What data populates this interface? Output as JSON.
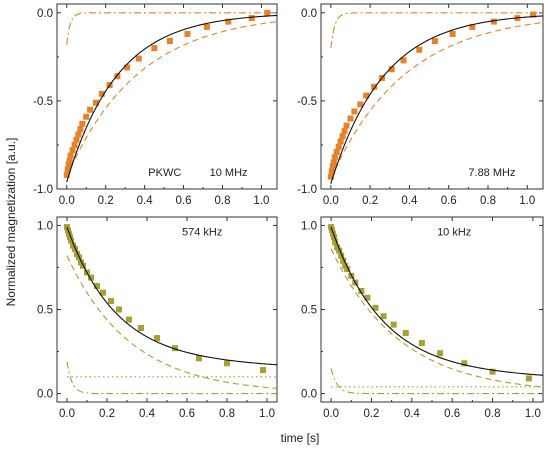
{
  "figure": {
    "ylabel": "Normalized magnetization [a.u.]",
    "xlabel": "time [s]"
  },
  "chart_data": [
    {
      "type": "scatter",
      "panel": "top-left",
      "annotations": [
        "PKWC",
        "10 MHz"
      ],
      "xlim": [
        -0.05,
        1.08
      ],
      "ylim": [
        -1.0,
        0.05
      ],
      "xticks": [
        0.0,
        0.2,
        0.4,
        0.6,
        0.8,
        1.0
      ],
      "xtick_labels": [
        "0.0",
        "0.2",
        "0.4",
        "0.6",
        "0.8",
        "1.0"
      ],
      "yticks": [
        -1.0,
        -0.5,
        0.0
      ],
      "ytick_labels": [
        "-1.0",
        "-0.5",
        "0.0"
      ],
      "marker_color": "#e8822a",
      "points": {
        "x": [
          0.0,
          0.005,
          0.01,
          0.015,
          0.02,
          0.03,
          0.04,
          0.05,
          0.06,
          0.07,
          0.08,
          0.1,
          0.12,
          0.15,
          0.18,
          0.22,
          0.26,
          0.31,
          0.37,
          0.45,
          0.53,
          0.62,
          0.72,
          0.83,
          0.95,
          1.03
        ],
        "y": [
          -0.92,
          -0.89,
          -0.86,
          -0.84,
          -0.81,
          -0.78,
          -0.75,
          -0.72,
          -0.69,
          -0.66,
          -0.63,
          -0.59,
          -0.55,
          -0.51,
          -0.46,
          -0.41,
          -0.36,
          -0.31,
          -0.26,
          -0.2,
          -0.16,
          -0.12,
          -0.08,
          -0.05,
          -0.03,
          0.0
        ]
      },
      "fit": {
        "type": "exp",
        "a": -0.96,
        "tau": 0.26,
        "offset": 0.0
      },
      "dashed": {
        "type": "exp",
        "a": -0.93,
        "tau": 0.37,
        "offset": 0.0
      },
      "dashdot": {
        "type": "exp",
        "a": -0.18,
        "tau": 0.018,
        "offset": 0.0
      }
    },
    {
      "type": "scatter",
      "panel": "top-right",
      "annotations": [
        "7.88 MHz"
      ],
      "xlim": [
        -0.05,
        1.08
      ],
      "ylim": [
        -1.0,
        0.05
      ],
      "xticks": [
        0.0,
        0.2,
        0.4,
        0.6,
        0.8,
        1.0
      ],
      "xtick_labels": [
        "0.0",
        "0.2",
        "0.4",
        "0.6",
        "0.8",
        "1.0"
      ],
      "yticks": [
        -1.0,
        -0.5,
        0.0
      ],
      "ytick_labels": [
        "-1.0",
        "-0.5",
        "0.0"
      ],
      "marker_color": "#e8822a",
      "points": {
        "x": [
          0.0,
          0.005,
          0.01,
          0.015,
          0.02,
          0.03,
          0.04,
          0.05,
          0.06,
          0.07,
          0.08,
          0.1,
          0.12,
          0.15,
          0.18,
          0.22,
          0.26,
          0.31,
          0.37,
          0.45,
          0.53,
          0.62,
          0.72,
          0.83,
          0.95,
          1.03
        ],
        "y": [
          -0.93,
          -0.9,
          -0.87,
          -0.85,
          -0.82,
          -0.79,
          -0.76,
          -0.73,
          -0.7,
          -0.67,
          -0.64,
          -0.6,
          -0.56,
          -0.52,
          -0.47,
          -0.42,
          -0.37,
          -0.32,
          -0.27,
          -0.21,
          -0.16,
          -0.12,
          -0.08,
          -0.05,
          -0.03,
          -0.01
        ]
      },
      "fit": {
        "type": "exp",
        "a": -0.97,
        "tau": 0.27,
        "offset": 0.0
      },
      "dashed": {
        "type": "exp",
        "a": -0.94,
        "tau": 0.38,
        "offset": 0.0
      },
      "dashdot": {
        "type": "exp",
        "a": -0.2,
        "tau": 0.02,
        "offset": 0.0
      }
    },
    {
      "type": "scatter",
      "panel": "bottom-left",
      "annotations": [
        "574 kHz"
      ],
      "xlim": [
        -0.05,
        1.05
      ],
      "ylim": [
        -0.05,
        1.05
      ],
      "xticks": [
        0.0,
        0.2,
        0.4,
        0.6,
        0.8,
        1.0
      ],
      "xtick_labels": [
        "0.0",
        "0.2",
        "0.4",
        "0.6",
        "0.8",
        "1.0"
      ],
      "yticks": [
        0.0,
        0.5,
        1.0
      ],
      "ytick_labels": [
        "0.0",
        "0.5",
        "1.0"
      ],
      "marker_color": "#a8a032",
      "points": {
        "x": [
          0.0,
          0.005,
          0.01,
          0.015,
          0.02,
          0.03,
          0.04,
          0.05,
          0.06,
          0.07,
          0.08,
          0.1,
          0.12,
          0.15,
          0.18,
          0.22,
          0.26,
          0.31,
          0.37,
          0.45,
          0.54,
          0.66,
          0.8,
          0.98
        ],
        "y": [
          0.99,
          0.97,
          0.95,
          0.93,
          0.91,
          0.88,
          0.86,
          0.83,
          0.81,
          0.78,
          0.76,
          0.72,
          0.69,
          0.64,
          0.6,
          0.55,
          0.5,
          0.44,
          0.39,
          0.33,
          0.27,
          0.21,
          0.18,
          0.14
        ]
      },
      "fit": {
        "type": "exp2",
        "a1": 0.78,
        "tau1": 0.24,
        "a2": 0.21,
        "tau2": 4.0
      },
      "dashed": {
        "type": "exp",
        "a": 0.82,
        "tau": 0.32,
        "offset": 0.0
      },
      "dashdot": {
        "type": "exp",
        "a": 0.19,
        "tau": 0.025,
        "offset": 0.0
      },
      "dotted": {
        "type": "const",
        "value": 0.1
      }
    },
    {
      "type": "scatter",
      "panel": "bottom-right",
      "annotations": [
        "10 kHz"
      ],
      "xlim": [
        -0.05,
        1.05
      ],
      "ylim": [
        -0.05,
        1.05
      ],
      "xticks": [
        0.0,
        0.2,
        0.4,
        0.6,
        0.8,
        1.0
      ],
      "xtick_labels": [
        "0.0",
        "0.2",
        "0.4",
        "0.6",
        "0.8",
        "1.0"
      ],
      "yticks": [
        0.0,
        0.5,
        1.0
      ],
      "ytick_labels": [
        "0.0",
        "0.5",
        "1.0"
      ],
      "marker_color": "#a8a032",
      "points": {
        "x": [
          0.0,
          0.005,
          0.01,
          0.015,
          0.02,
          0.03,
          0.04,
          0.05,
          0.06,
          0.07,
          0.08,
          0.1,
          0.12,
          0.15,
          0.18,
          0.22,
          0.26,
          0.31,
          0.37,
          0.45,
          0.54,
          0.66,
          0.8,
          0.98
        ],
        "y": [
          0.99,
          0.97,
          0.95,
          0.93,
          0.9,
          0.87,
          0.85,
          0.82,
          0.79,
          0.76,
          0.74,
          0.7,
          0.66,
          0.61,
          0.57,
          0.51,
          0.46,
          0.41,
          0.36,
          0.3,
          0.24,
          0.18,
          0.13,
          0.09
        ]
      },
      "fit": {
        "type": "exp2",
        "a1": 0.85,
        "tau1": 0.25,
        "a2": 0.14,
        "tau2": 2.8
      },
      "dashed": {
        "type": "exp",
        "a": 0.86,
        "tau": 0.34,
        "offset": 0.0
      },
      "dashdot": {
        "type": "exp",
        "a": 0.15,
        "tau": 0.03,
        "offset": 0.0
      },
      "dotted": {
        "type": "const",
        "value": 0.04
      }
    }
  ]
}
